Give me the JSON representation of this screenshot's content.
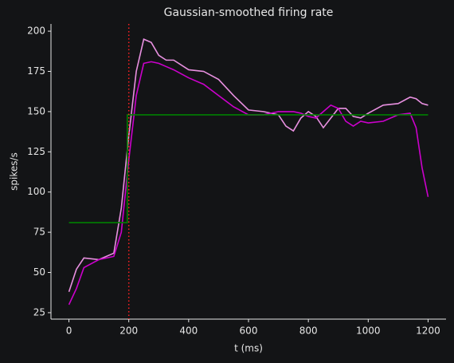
{
  "chart_data": {
    "type": "line",
    "title": "Gaussian-smoothed firing rate",
    "xlabel": "t (ms)",
    "ylabel": "spikes/s",
    "x": [
      0,
      25,
      50,
      100,
      150,
      175,
      200,
      225,
      250,
      275,
      300,
      325,
      350,
      400,
      450,
      500,
      550,
      600,
      650,
      700,
      725,
      750,
      775,
      800,
      825,
      850,
      875,
      900,
      925,
      950,
      975,
      1000,
      1050,
      1100,
      1140,
      1160,
      1180,
      1200
    ],
    "series": [
      {
        "color": "#e890e0",
        "values": [
          38,
          52,
          59,
          58,
          62,
          90,
          135,
          175,
          195,
          193,
          185,
          182,
          182,
          176,
          175,
          170,
          160,
          151,
          150,
          148,
          141,
          138,
          146,
          150,
          147,
          140,
          146,
          152,
          152,
          147,
          146,
          149,
          154,
          155,
          159,
          158,
          155,
          154
        ]
      },
      {
        "color": "#cc00cc",
        "values": [
          30,
          40,
          53,
          58,
          60,
          75,
          120,
          160,
          180,
          181,
          180,
          178,
          176,
          171,
          167,
          160,
          153,
          148,
          148,
          150,
          150,
          150,
          149,
          147,
          146,
          150,
          154,
          152,
          144,
          141,
          144,
          143,
          144,
          148,
          149,
          140,
          115,
          97
        ]
      },
      {
        "color": "#008000",
        "x": [
          0,
          195,
          1200
        ],
        "values": [
          81,
          148,
          148
        ],
        "step": true
      }
    ],
    "vline": {
      "x": 200,
      "color": "#ff2020",
      "style": "dotted"
    },
    "xlim": [
      -60,
      1260
    ],
    "xticks": [
      0,
      200,
      400,
      600,
      800,
      1000,
      1200
    ],
    "ylim": [
      21,
      204.5
    ],
    "yticks": [
      25,
      50,
      75,
      100,
      125,
      150,
      175,
      200
    ]
  }
}
